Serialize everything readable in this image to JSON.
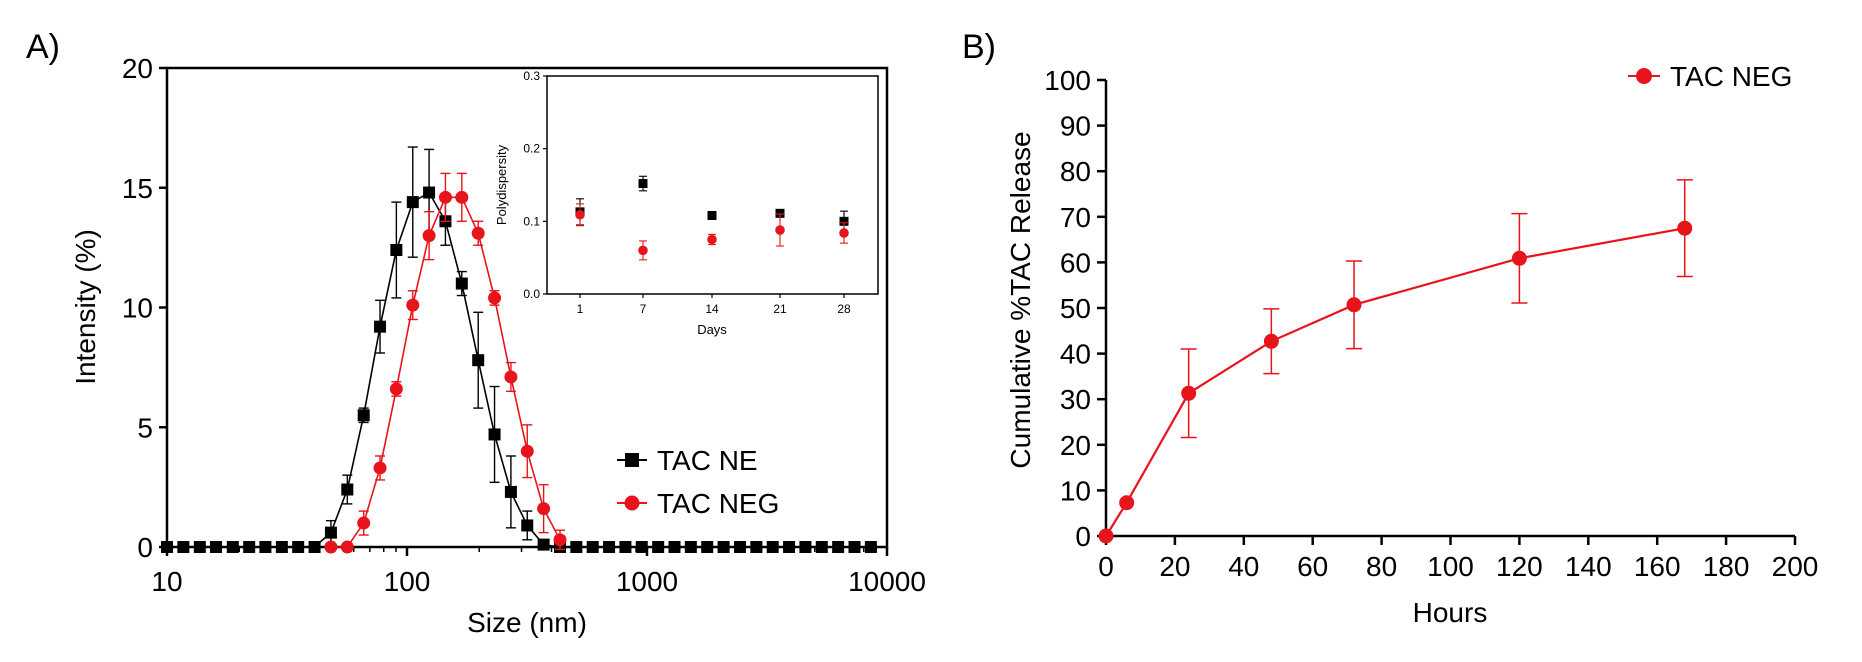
{
  "panel_labels": [
    "A)",
    "B)"
  ],
  "colors": {
    "ne": "#000000",
    "neg": "#e8141b",
    "axis": "#000000"
  },
  "chart_data": [
    {
      "id": "A-main",
      "type": "line",
      "xlabel": "Size (nm)",
      "ylabel": "Intensity (%)",
      "xscale": "log",
      "xlim": [
        10,
        10000
      ],
      "ylim": [
        0,
        20
      ],
      "xticks": [
        "10",
        "100",
        "1000",
        "10000"
      ],
      "yticks": [
        "0",
        "5",
        "10",
        "15",
        "20"
      ],
      "legend": {
        "placement": "bottom-right",
        "entries": [
          "TAC NE",
          "TAC NEG"
        ]
      },
      "series": [
        {
          "name": "TAC NE",
          "marker": "square",
          "color": "#000000",
          "x": [
            10,
            11.7,
            13.7,
            16.0,
            18.8,
            22.0,
            25.7,
            30.1,
            35.2,
            41.2,
            48.2,
            56.4,
            66.0,
            77.2,
            90.3,
            105.7,
            123.6,
            144.6,
            169.2,
            198.0,
            231.6,
            271.0,
            317.0,
            370.9,
            434.0,
            507.7,
            594.0,
            695.0,
            813.0,
            951.0,
            1113,
            1302,
            1523,
            1782,
            2085,
            2440,
            2855,
            3340,
            3908,
            4572,
            5349,
            6258,
            7322,
            8566
          ],
          "y": [
            0,
            0,
            0,
            0,
            0,
            0,
            0,
            0,
            0,
            0,
            0.6,
            2.4,
            5.5,
            9.2,
            12.4,
            14.4,
            14.8,
            13.6,
            11.0,
            7.8,
            4.7,
            2.3,
            0.9,
            0.1,
            0,
            0,
            0,
            0,
            0,
            0,
            0,
            0,
            0,
            0,
            0,
            0,
            0,
            0,
            0,
            0,
            0,
            0,
            0,
            0
          ],
          "err": [
            0,
            0,
            0,
            0,
            0,
            0,
            0,
            0,
            0,
            0,
            0.5,
            0.6,
            0.3,
            1.1,
            2.0,
            2.3,
            1.8,
            1.0,
            0.5,
            2.0,
            2.0,
            1.5,
            0.6,
            0,
            0,
            0,
            0,
            0,
            0,
            0,
            0,
            0,
            0,
            0,
            0,
            0,
            0,
            0,
            0,
            0,
            0,
            0,
            0,
            0
          ]
        },
        {
          "name": "TAC NEG",
          "marker": "circle",
          "color": "#e8141b",
          "x": [
            48.2,
            56.4,
            66.0,
            77.2,
            90.3,
            105.7,
            123.6,
            144.6,
            169.2,
            198.0,
            231.6,
            271.0,
            317.0,
            370.9,
            434.0
          ],
          "y": [
            0,
            0,
            1.0,
            3.3,
            6.6,
            10.1,
            13.0,
            14.6,
            14.6,
            13.1,
            10.4,
            7.1,
            4.0,
            1.6,
            0.3
          ],
          "err": [
            0,
            0,
            0.5,
            0.5,
            0.3,
            0.6,
            1.0,
            1.0,
            1.0,
            0.5,
            0.3,
            0.6,
            1.1,
            1.0,
            0.4
          ]
        }
      ]
    },
    {
      "id": "A-inset",
      "type": "scatter",
      "xlabel": "Days",
      "ylabel": "Polydispersity",
      "ylim": [
        0,
        0.3
      ],
      "categories": [
        "1",
        "7",
        "14",
        "21",
        "28"
      ],
      "yticks": [
        "0.0",
        "0.1",
        "0.2",
        "0.3"
      ],
      "series": [
        {
          "name": "TAC NE",
          "marker": "square",
          "color": "#000000",
          "values": [
            0.113,
            0.152,
            0.108,
            0.111,
            0.1
          ],
          "err": [
            0.018,
            0.01,
            0.004,
            0.004,
            0.014
          ]
        },
        {
          "name": "TAC NEG",
          "marker": "circle",
          "color": "#e8141b",
          "values": [
            0.109,
            0.06,
            0.075,
            0.088,
            0.084
          ],
          "err": [
            0.015,
            0.013,
            0.007,
            0.022,
            0.014
          ]
        }
      ]
    },
    {
      "id": "B",
      "type": "line",
      "xlabel": "Hours",
      "ylabel": "Cumulative %TAC Release",
      "xlim": [
        0,
        200
      ],
      "ylim": [
        0,
        100
      ],
      "xticks": [
        "0",
        "20",
        "40",
        "60",
        "80",
        "100",
        "120",
        "140",
        "160",
        "180",
        "200"
      ],
      "yticks": [
        "0",
        "10",
        "20",
        "30",
        "40",
        "50",
        "60",
        "70",
        "80",
        "90",
        "100"
      ],
      "legend": {
        "placement": "top-right",
        "entries": [
          "TAC NEG"
        ]
      },
      "series": [
        {
          "name": "TAC NEG",
          "marker": "circle",
          "color": "#e8141b",
          "x": [
            0,
            6,
            24,
            48,
            72,
            120,
            168
          ],
          "y": [
            0,
            7.3,
            31.3,
            42.7,
            50.7,
            60.9,
            67.5
          ],
          "err": [
            0,
            0,
            9.7,
            7.1,
            9.6,
            9.8,
            10.6
          ]
        }
      ]
    }
  ]
}
